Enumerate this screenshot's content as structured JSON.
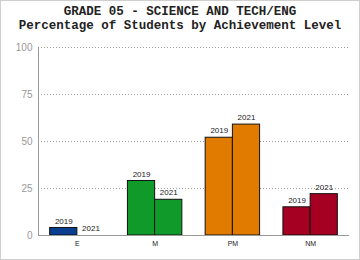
{
  "chart_data": {
    "type": "bar",
    "title": "GRADE 05 - SCIENCE AND TECH/ENG",
    "subtitle": "Percentage of Students by Achievement Level",
    "categories": [
      "E",
      "M",
      "PM",
      "NM"
    ],
    "series": [
      {
        "name": "2019",
        "values": [
          4,
          29,
          52,
          15
        ]
      },
      {
        "name": "2021",
        "values": [
          0,
          19,
          59,
          22
        ]
      }
    ],
    "colors": [
      "#0b3d91",
      "#0f9a2a",
      "#e07b00",
      "#a50021"
    ],
    "ylim": [
      0,
      100
    ],
    "yticks": [
      0,
      25,
      50,
      75,
      100
    ],
    "grid": true
  }
}
